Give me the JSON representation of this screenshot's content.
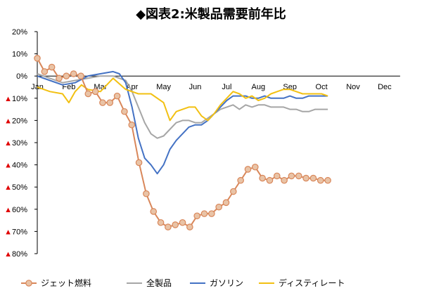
{
  "chart_data": {
    "type": "line",
    "title": "◆図表2:米製品需要前年比",
    "xlabel": "",
    "ylabel": "",
    "ylim": [
      -80,
      20
    ],
    "x_categories": [
      "Jan",
      "Feb",
      "Mar",
      "Apr",
      "May",
      "Jun",
      "Jul",
      "Aug",
      "Sep",
      "Oct",
      "Nov",
      "Dec"
    ],
    "y_ticks": [
      20,
      10,
      0,
      -10,
      -20,
      -30,
      -40,
      -50,
      -60,
      -70,
      -80
    ],
    "y_tick_labels": [
      "20%",
      "10%",
      "0%",
      "▲10%",
      "▲20%",
      "▲30%",
      "▲40%",
      "▲50%",
      "▲60%",
      "▲70%",
      "▲80%"
    ],
    "legend_position": "bottom",
    "colors": {
      "jet": "#D9875A",
      "jet_marker_fill": "#E9C3A6",
      "all": "#A6A6A6",
      "gasoline": "#4472C4",
      "distillate": "#F2C012",
      "neg_marker": "#E00000",
      "axis": "#000000"
    },
    "series": [
      {
        "name": "ジェット燃料",
        "key": "jet",
        "markers": true,
        "x": [
          0,
          0.23,
          0.46,
          0.69,
          0.92,
          1.15,
          1.38,
          1.61,
          1.84,
          2.07,
          2.3,
          2.53,
          2.76,
          2.99,
          3.22,
          3.45,
          3.68,
          3.91,
          4.14,
          4.37,
          4.6,
          4.83,
          5.06,
          5.29,
          5.52,
          5.75,
          5.98,
          6.21,
          6.44,
          6.67,
          6.9,
          7.13,
          7.36,
          7.59,
          7.82,
          8.05,
          8.28,
          8.51,
          8.74,
          8.97,
          9.2
        ],
        "values": [
          8,
          2,
          4,
          -1,
          0,
          1,
          0,
          -8,
          -7,
          -12,
          -12,
          -9,
          -16,
          -22,
          -39,
          -53,
          -61,
          -66,
          -68,
          -67,
          -66,
          -68,
          -63,
          -62,
          -62,
          -59,
          -57,
          -52,
          -47,
          -42,
          -41,
          -46,
          -47,
          -45,
          -47,
          -45,
          -45,
          -46,
          -46,
          -47,
          -47
        ]
      },
      {
        "name": "全製品",
        "key": "all",
        "markers": false,
        "x": [
          0,
          0.4,
          0.8,
          1.2,
          1.6,
          2.0,
          2.4,
          2.8,
          3.0,
          3.2,
          3.4,
          3.6,
          3.8,
          4.0,
          4.2,
          4.4,
          4.6,
          4.8,
          5.0,
          5.2,
          5.4,
          5.6,
          5.8,
          6.0,
          6.2,
          6.4,
          6.6,
          6.8,
          7.0,
          7.2,
          7.4,
          7.6,
          7.8,
          8.0,
          8.2,
          8.4,
          8.6,
          8.8,
          9.0,
          9.2
        ],
        "values": [
          1,
          -1,
          -3,
          -2,
          -1,
          0,
          0,
          -2,
          -7,
          -14,
          -21,
          -26,
          -28,
          -27,
          -24,
          -21,
          -20,
          -20,
          -21,
          -21,
          -19,
          -17,
          -15,
          -14,
          -13,
          -15,
          -13,
          -14,
          -13,
          -13,
          -14,
          -14,
          -14,
          -15,
          -15,
          -16,
          -16,
          -15,
          -15,
          -15
        ]
      },
      {
        "name": "ガソリン",
        "key": "gasoline",
        "markers": false,
        "x": [
          0,
          0.4,
          0.8,
          1.2,
          1.6,
          2.0,
          2.4,
          2.6,
          2.8,
          3.0,
          3.2,
          3.4,
          3.6,
          3.8,
          4.0,
          4.2,
          4.4,
          4.6,
          4.8,
          5.0,
          5.2,
          5.4,
          5.6,
          5.8,
          6.0,
          6.2,
          6.4,
          6.6,
          6.8,
          7.0,
          7.2,
          7.4,
          7.6,
          7.8,
          8.0,
          8.2,
          8.4,
          8.6,
          8.8,
          9.0,
          9.2
        ],
        "values": [
          0,
          -2,
          -4,
          -3,
          0,
          1,
          2,
          1,
          -3,
          -14,
          -28,
          -37,
          -40,
          -44,
          -40,
          -33,
          -29,
          -26,
          -23,
          -22,
          -22,
          -20,
          -17,
          -14,
          -11,
          -9,
          -9,
          -9,
          -10,
          -10,
          -9,
          -10,
          -10,
          -10,
          -9,
          -10,
          -10,
          -9,
          -9,
          -9,
          -9
        ]
      },
      {
        "name": "ディスティレート",
        "key": "distillate",
        "markers": false,
        "x": [
          0,
          0.4,
          0.8,
          1.0,
          1.2,
          1.4,
          1.6,
          2.0,
          2.4,
          2.8,
          3.2,
          3.6,
          4.0,
          4.2,
          4.4,
          4.8,
          5.0,
          5.2,
          5.4,
          5.6,
          5.8,
          6.0,
          6.2,
          6.4,
          6.6,
          6.8,
          7.0,
          7.2,
          7.4,
          7.6,
          7.8,
          8.0,
          8.2,
          8.4,
          8.6,
          8.8,
          9.0,
          9.2
        ],
        "values": [
          -5,
          -7,
          -8,
          -12,
          -7,
          -4,
          -6,
          -7,
          -1,
          -6,
          -8,
          -8,
          -12,
          -20,
          -16,
          -14,
          -14,
          -18,
          -20,
          -17,
          -13,
          -10,
          -7,
          -8,
          -10,
          -9,
          -11,
          -10,
          -8,
          -7,
          -6,
          -6,
          -7,
          -8,
          -8,
          -8,
          -8,
          -9
        ]
      }
    ]
  }
}
